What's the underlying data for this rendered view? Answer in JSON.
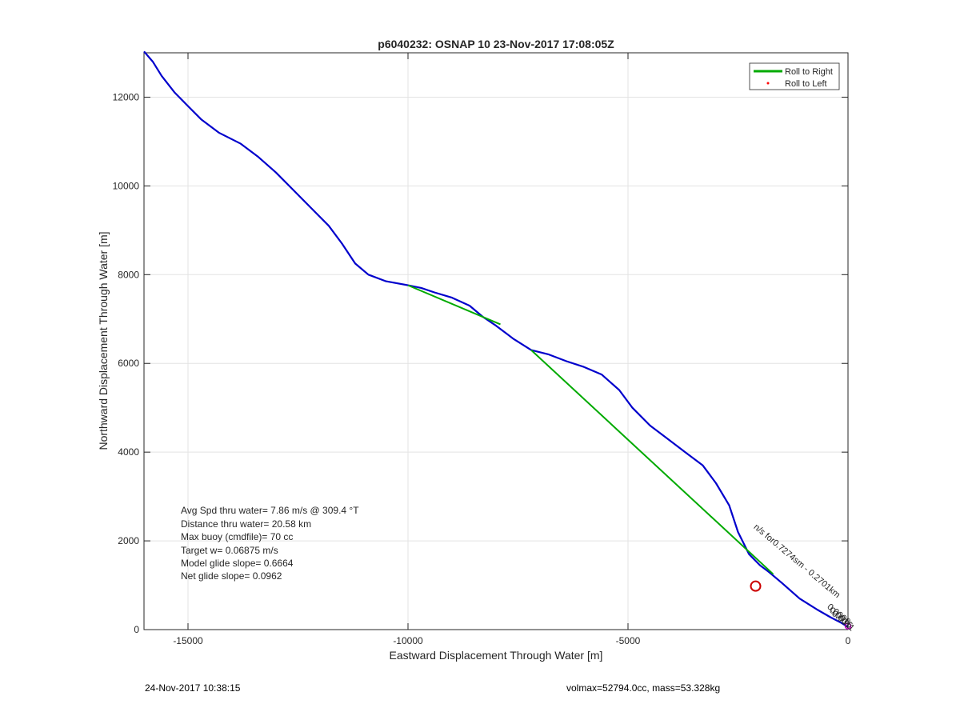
{
  "chart_data": {
    "type": "line",
    "title": "p6040232: OSNAP 10 23-Nov-2017 17:08:05Z",
    "xlabel": "Eastward Displacement Through Water [m]",
    "ylabel": "Northward Displacement Through Water [m]",
    "xlim": [
      -16000,
      0
    ],
    "ylim": [
      0,
      13000
    ],
    "x_ticks": [
      -15000,
      -10000,
      -5000,
      0
    ],
    "y_ticks": [
      0,
      2000,
      4000,
      6000,
      8000,
      10000,
      12000
    ],
    "x_tick_labels": [
      "-15000",
      "-10000",
      "-5000",
      "0"
    ],
    "y_tick_labels": [
      "0",
      "2000",
      "4000",
      "6000",
      "8000",
      "10000",
      "12000"
    ],
    "grid": true,
    "legend_position": "top-right",
    "legend": [
      {
        "label": "Roll to Right",
        "color": "#00aa00",
        "style": "line"
      },
      {
        "label": "Roll to Left",
        "color": "#ff0000",
        "style": "dot"
      }
    ],
    "series": [
      {
        "color": "#0000cc",
        "points": [
          [
            -16000,
            13030
          ],
          [
            -15800,
            12800
          ],
          [
            -15600,
            12480
          ],
          [
            -15300,
            12100
          ],
          [
            -15000,
            11800
          ],
          [
            -14700,
            11500
          ],
          [
            -14300,
            11200
          ],
          [
            -13800,
            10950
          ],
          [
            -13400,
            10650
          ],
          [
            -13000,
            10300
          ],
          [
            -12600,
            9900
          ],
          [
            -12200,
            9500
          ],
          [
            -11800,
            9100
          ],
          [
            -11500,
            8700
          ],
          [
            -11200,
            8250
          ],
          [
            -10900,
            8000
          ],
          [
            -10500,
            7850
          ],
          [
            -10000,
            7760
          ],
          [
            -9700,
            7700
          ],
          [
            -9400,
            7600
          ],
          [
            -9000,
            7480
          ],
          [
            -8600,
            7300
          ],
          [
            -8300,
            7050
          ],
          [
            -8000,
            6850
          ],
          [
            -7600,
            6550
          ],
          [
            -7200,
            6300
          ],
          [
            -6800,
            6200
          ],
          [
            -6400,
            6050
          ],
          [
            -6000,
            5920
          ],
          [
            -5600,
            5750
          ],
          [
            -5200,
            5400
          ],
          [
            -4900,
            5000
          ],
          [
            -4500,
            4600
          ],
          [
            -4100,
            4300
          ],
          [
            -3700,
            4000
          ],
          [
            -3300,
            3700
          ],
          [
            -3000,
            3300
          ],
          [
            -2700,
            2800
          ],
          [
            -2500,
            2200
          ],
          [
            -2250,
            1700
          ],
          [
            -2000,
            1450
          ],
          [
            -1800,
            1300
          ],
          [
            -1500,
            1050
          ],
          [
            -1100,
            700
          ],
          [
            -700,
            450
          ],
          [
            -400,
            280
          ],
          [
            -150,
            150
          ],
          [
            0,
            60
          ]
        ]
      },
      {
        "color": "#00aa00",
        "segments": [
          [
            [
              -10000,
              7760
            ],
            [
              -7900,
              6880
            ]
          ],
          [
            [
              -7200,
              6300
            ],
            [
              -1700,
              1250
            ]
          ]
        ]
      }
    ],
    "markers": [
      {
        "shape": "circle",
        "color": "#cc0000",
        "x": -2100,
        "y": 980
      },
      {
        "shape": "circle",
        "color": "#cc00cc",
        "x": 0,
        "y": 80
      }
    ],
    "annotations": [
      {
        "text": "n/s for0.7274sm - 0.2701km",
        "x": -1200,
        "y": 1500,
        "rotation_deg": 40
      },
      {
        "text": "0.0008",
        "x": -250,
        "y": 300,
        "rotation_deg": 40
      },
      {
        "text": "0.0016",
        "x": -200,
        "y": 220,
        "rotation_deg": 40
      },
      {
        "text": "0.0011",
        "x": -150,
        "y": 150,
        "rotation_deg": 40
      }
    ],
    "stats": [
      "Avg Spd thru water=  7.86 m/s @ 309.4 °T",
      "Distance thru water= 20.58 km",
      "Max buoy (cmdfile)= 70 cc",
      "Target w= 0.06875 m/s",
      "Model glide slope= 0.6664",
      "Net glide slope= 0.0962"
    ]
  },
  "footer": {
    "timestamp": "24-Nov-2017 10:38:15",
    "info": "volmax=52794.0cc, mass=53.328kg"
  }
}
